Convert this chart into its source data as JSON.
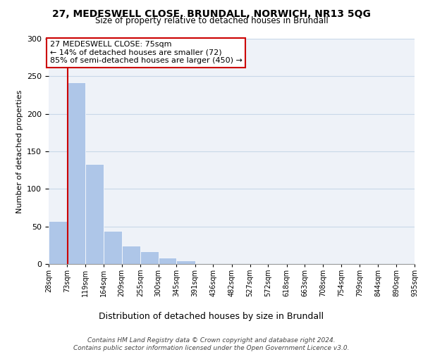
{
  "title_line1": "27, MEDESWELL CLOSE, BRUNDALL, NORWICH, NR13 5QG",
  "title_line2": "Size of property relative to detached houses in Brundall",
  "xlabel": "Distribution of detached houses by size in Brundall",
  "ylabel": "Number of detached properties",
  "bar_edges": [
    28,
    73,
    119,
    164,
    209,
    255,
    300,
    345,
    391,
    436,
    482,
    527,
    572,
    618,
    663,
    708,
    754,
    799,
    844,
    890,
    935
  ],
  "bar_heights": [
    57,
    242,
    133,
    44,
    24,
    17,
    8,
    5,
    0,
    0,
    0,
    1,
    0,
    0,
    0,
    0,
    0,
    0,
    0,
    0
  ],
  "bar_color": "#aec6e8",
  "bar_edgecolor": "#ffffff",
  "property_line_x": 75,
  "property_line_color": "#cc0000",
  "annotation_text": "27 MEDESWELL CLOSE: 75sqm\n← 14% of detached houses are smaller (72)\n85% of semi-detached houses are larger (450) →",
  "annotation_box_facecolor": "#ffffff",
  "annotation_box_edgecolor": "#cc0000",
  "ylim": [
    0,
    300
  ],
  "yticks": [
    0,
    50,
    100,
    150,
    200,
    250,
    300
  ],
  "tick_labels": [
    "28sqm",
    "73sqm",
    "119sqm",
    "164sqm",
    "209sqm",
    "255sqm",
    "300sqm",
    "345sqm",
    "391sqm",
    "436sqm",
    "482sqm",
    "527sqm",
    "572sqm",
    "618sqm",
    "663sqm",
    "708sqm",
    "754sqm",
    "799sqm",
    "844sqm",
    "890sqm",
    "935sqm"
  ],
  "footer_line1": "Contains HM Land Registry data © Crown copyright and database right 2024.",
  "footer_line2": "Contains public sector information licensed under the Open Government Licence v3.0.",
  "grid_color": "#c8d8e8",
  "bg_color": "#eef2f8"
}
